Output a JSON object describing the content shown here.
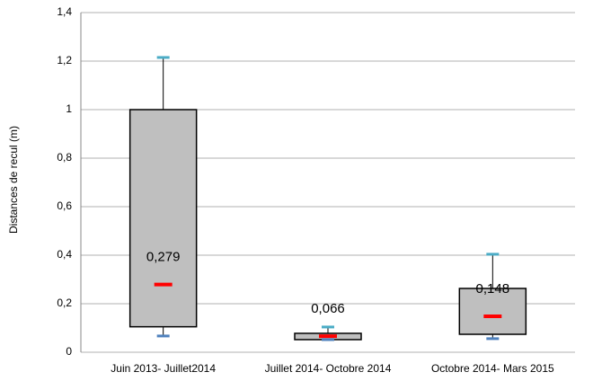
{
  "chart_data": {
    "type": "box",
    "y_label": "Distances de recul (m)",
    "categories": [
      "Juin 2013- Juillet2014",
      "Juillet 2014-  Octobre 2014",
      "Octobre 2014-  Mars 2015"
    ],
    "min": [
      0.067,
      0.052,
      0.056
    ],
    "q1": [
      0.105,
      0.052,
      0.074
    ],
    "median": [
      0.279,
      0.066,
      0.148
    ],
    "q3": [
      1.0,
      0.078,
      0.263
    ],
    "max": [
      1.215,
      0.104,
      0.404
    ],
    "value_labels": [
      "0,279",
      "0,066",
      "0,148"
    ],
    "box_color": "#bfbfbf",
    "median_color": "#ff0000",
    "max_color": "#4bacc6",
    "min_color": "#4f81bd",
    "ylim": [
      0,
      1.4
    ],
    "yticks": [
      0,
      {
        "value": 0.2,
        "label": "0,2"
      },
      {
        "value": 0.4,
        "label": "0,4"
      },
      {
        "value": 0.6,
        "label": "0,6"
      },
      {
        "value": 0.8,
        "label": "0,8"
      },
      1,
      {
        "value": 1.2,
        "label": "1,2"
      },
      {
        "value": 1.4,
        "label": "1,4"
      }
    ],
    "grid": true
  }
}
